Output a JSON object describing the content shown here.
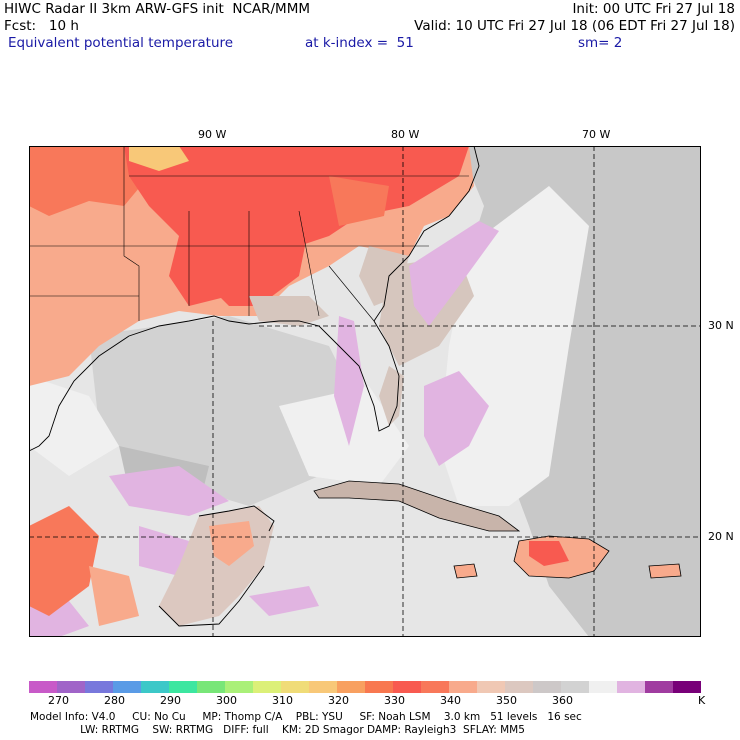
{
  "header": {
    "line1_left": "HIWC Radar II 3km ARW-GFS init  NCAR/MMM",
    "line1_right": "Init: 00 UTC Fri 27 Jul 18",
    "line2_left": "Fcst:   10 h",
    "line2_right": "Valid: 10 UTC Fri 27 Jul 18 (06 EDT Fri 27 Jul 18)",
    "field_name": "Equivalent potential temperature",
    "level": "at k-index =  51",
    "smoothing": "sm= 2"
  },
  "axes": {
    "lon_labels": [
      "90 W",
      "80 W",
      "70 W"
    ],
    "lat_labels": [
      "30 N",
      "20 N"
    ]
  },
  "colorbar": {
    "unit": "K",
    "labels": [
      "270",
      "280",
      "290",
      "300",
      "310",
      "320",
      "330",
      "340",
      "350",
      "360"
    ],
    "colors": [
      "#c85ac8",
      "#a064c8",
      "#7878dc",
      "#5a9be6",
      "#3cc8c8",
      "#3ce6a0",
      "#78e678",
      "#aaf078",
      "#dcf078",
      "#f0dc78",
      "#f8c878",
      "#f8a060",
      "#f87850",
      "#f85a50",
      "#f8785a",
      "#f8aa8c",
      "#f0c8b4",
      "#dcc8c0",
      "#cdc8c8",
      "#d2d2d2",
      "#f0f0f0",
      "#e1b4e1",
      "#a03ca0",
      "#780078"
    ]
  },
  "footer": {
    "line1": "Model Info: V4.0     CU: No Cu     MP: Thomp C/A    PBL: YSU     SF: Noah LSM    3.0 km   51 levels   16 sec",
    "line2": "               LW: RRTMG    SW: RRTMG   DIFF: full    KM: 2D Smagor DAMP: Rayleigh3  SFLAY: MM5"
  }
}
